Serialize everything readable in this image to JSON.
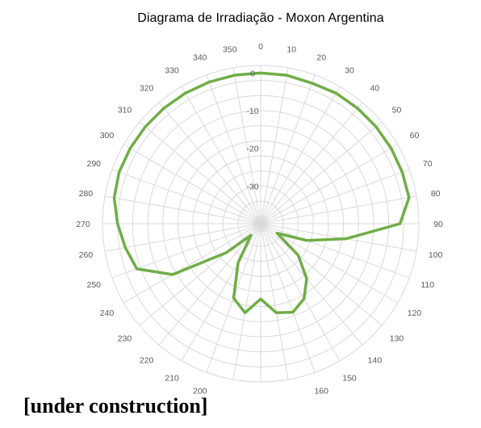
{
  "chart_data": {
    "type": "radar",
    "title": "Diagrama de Irradiação - Moxon Argentina",
    "angles": [
      0,
      10,
      20,
      30,
      40,
      50,
      60,
      70,
      80,
      90,
      100,
      110,
      120,
      130,
      140,
      150,
      160,
      170,
      180,
      190,
      200,
      210,
      220,
      230,
      240,
      250,
      260,
      270,
      280,
      290,
      300,
      310,
      320,
      330,
      340,
      350
    ],
    "angle_labels": [
      "0",
      "10",
      "20",
      "30",
      "40",
      "50",
      "60",
      "70",
      "80",
      "90",
      "100",
      "110",
      "120",
      "130",
      "140",
      "150",
      "160",
      "170",
      "180",
      "190",
      "200",
      "210",
      "220",
      "230",
      "240",
      "250",
      "260",
      "270",
      "280",
      "290",
      "300",
      "310",
      "320",
      "330",
      "340",
      "350"
    ],
    "radial_ticks": [
      0,
      -10,
      -20,
      -30
    ],
    "radial_tick_labels": [
      "0",
      "-10",
      "-20",
      "-30"
    ],
    "rlim": [
      -40,
      2
    ],
    "grid": true,
    "grid_rings": [
      -38,
      -34,
      -30,
      -26,
      -22,
      -18,
      -14,
      -10,
      -6,
      -2,
      2
    ],
    "series": [
      {
        "color": "#70AD47",
        "points": [
          [
            0,
            0
          ],
          [
            10,
            0
          ],
          [
            20,
            -0.3
          ],
          [
            30,
            0
          ],
          [
            40,
            0
          ],
          [
            50,
            0
          ],
          [
            60,
            0
          ],
          [
            70,
            0
          ],
          [
            80,
            0
          ],
          [
            90,
            -3
          ],
          [
            100,
            -17
          ],
          [
            110,
            -27
          ],
          [
            120,
            -35
          ],
          [
            130,
            -27
          ],
          [
            140,
            -21
          ],
          [
            150,
            -17
          ],
          [
            160,
            -15
          ],
          [
            170,
            -16
          ],
          [
            180,
            -20
          ],
          [
            190,
            -16
          ],
          [
            200,
            -19
          ],
          [
            210,
            -28
          ],
          [
            220,
            -36
          ],
          [
            230,
            -28
          ],
          [
            240,
            -13
          ],
          [
            250,
            -5
          ],
          [
            260,
            -3.5
          ],
          [
            270,
            -2
          ],
          [
            280,
            -0.5
          ],
          [
            290,
            0
          ],
          [
            300,
            0
          ],
          [
            310,
            0
          ],
          [
            320,
            0
          ],
          [
            330,
            0
          ],
          [
            340,
            0
          ],
          [
            350,
            0
          ]
        ]
      }
    ]
  },
  "colors": {
    "series": "#70AD47",
    "grid": "#D9D9D9",
    "label": "#595959",
    "title": "#000000"
  },
  "footer": {
    "note": "[under construction]"
  }
}
